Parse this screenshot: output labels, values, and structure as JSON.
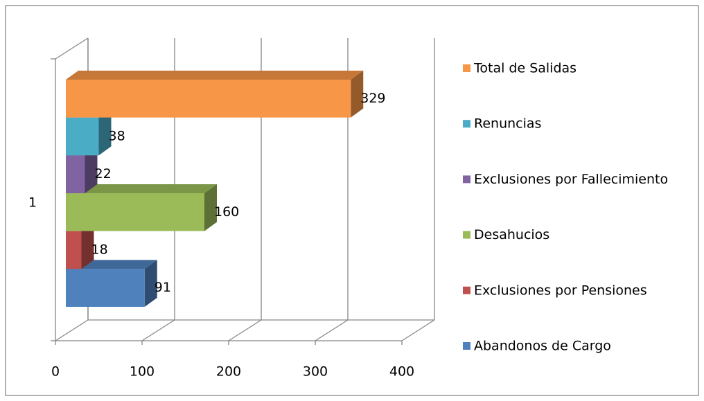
{
  "chart_data": {
    "type": "bar",
    "orientation": "horizontal",
    "three_d": true,
    "categories": [
      "1"
    ],
    "series": [
      {
        "name": "Abandonos de Cargo",
        "color": "#4f81bd",
        "values": [
          91
        ]
      },
      {
        "name": "Exclusiones por Pensiones",
        "color": "#c0504d",
        "values": [
          18
        ]
      },
      {
        "name": "Desahucios",
        "color": "#9bbb59",
        "values": [
          160
        ]
      },
      {
        "name": "Exclusiones por Fallecimiento",
        "color": "#8064a2",
        "values": [
          22
        ]
      },
      {
        "name": "Renuncias",
        "color": "#4bacc6",
        "values": [
          38
        ]
      },
      {
        "name": "Total de Salidas",
        "color": "#f79646",
        "values": [
          329
        ]
      }
    ],
    "xlim": [
      0,
      400
    ],
    "xticks": [
      0,
      100,
      200,
      300,
      400
    ],
    "grid": true,
    "legend": "right"
  }
}
